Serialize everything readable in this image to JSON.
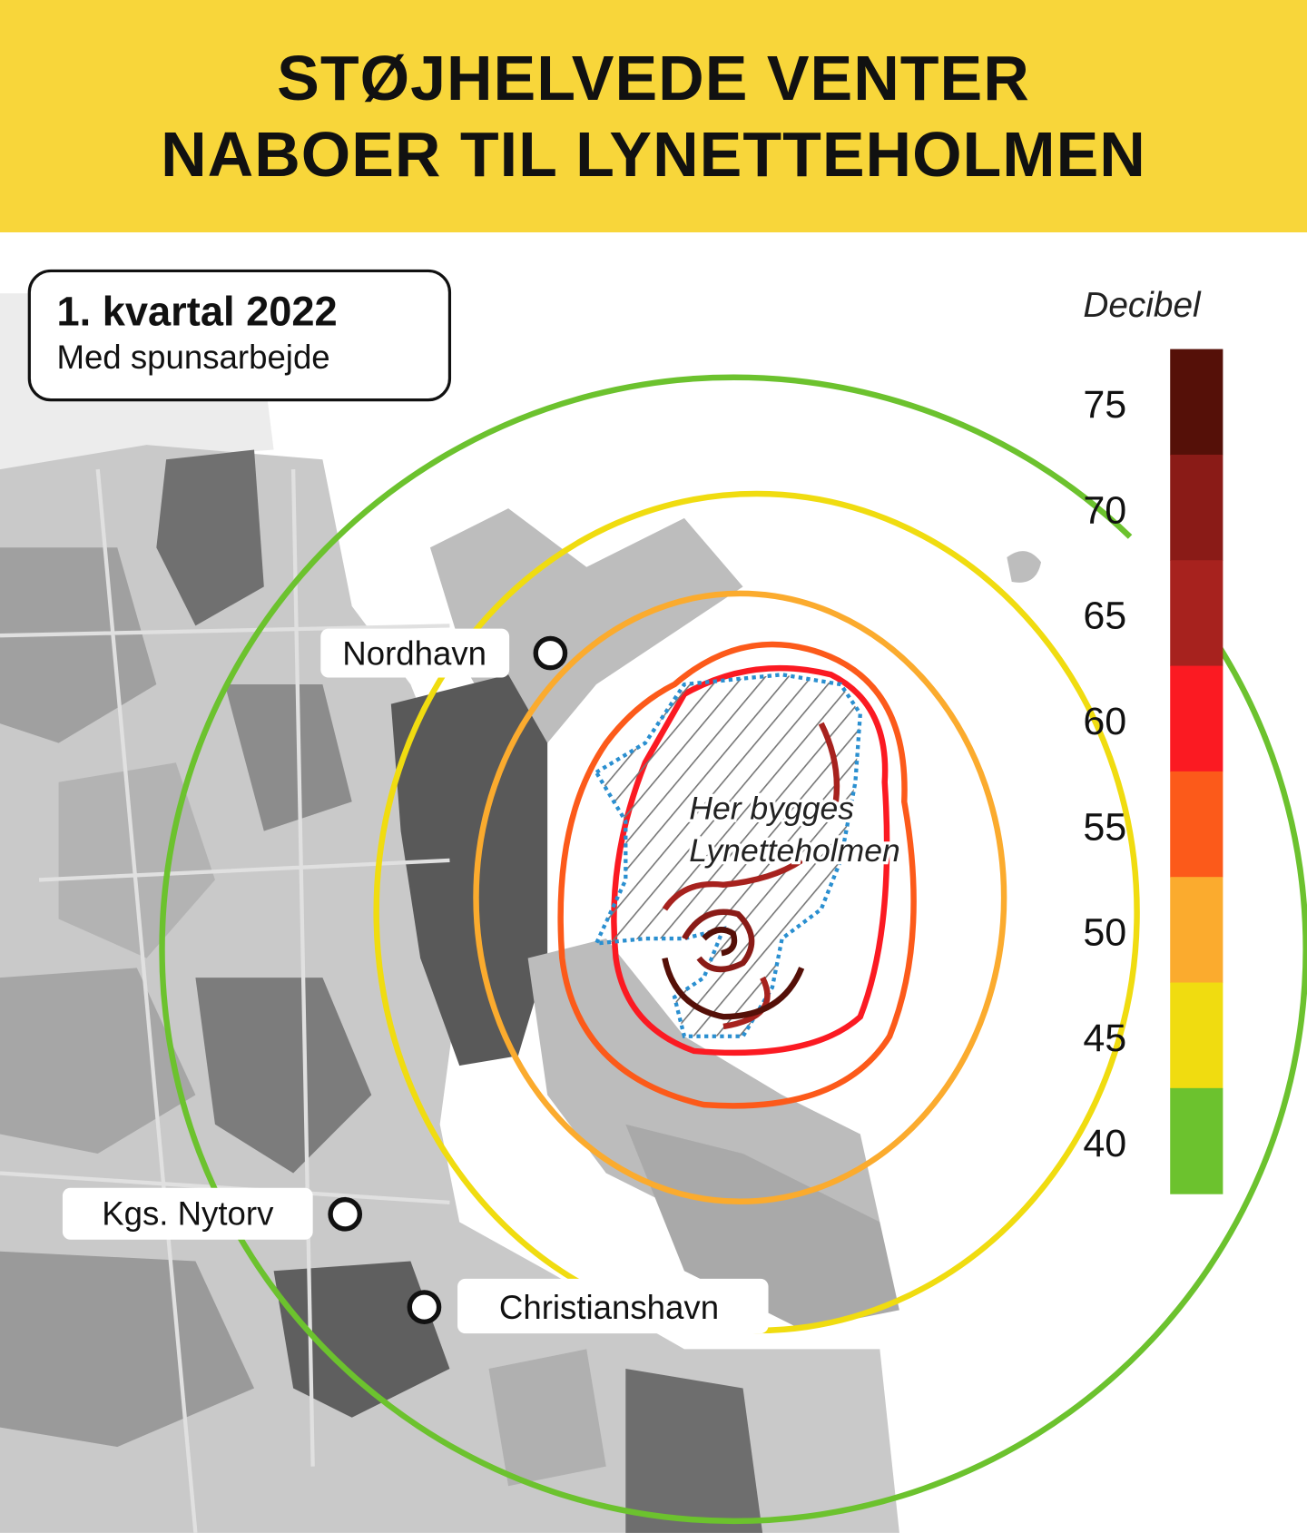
{
  "header": {
    "title_line1": "STØJHELVEDE VENTER",
    "title_line2": "NABOER TIL LYNETTEHOLMEN",
    "background_color": "#f8d63a"
  },
  "info_box": {
    "period": "1. kvartal 2022",
    "subtitle": "Med spunsarbejde"
  },
  "map": {
    "places": [
      {
        "name": "Nordhavn"
      },
      {
        "name": "Kgs. Nytorv"
      },
      {
        "name": "Christianshavn"
      }
    ],
    "construction_area_label_line1": "Her bygges",
    "construction_area_label_line2": "Lynetteholmen",
    "construction_area_border_color": "#2a8fd0"
  },
  "legend": {
    "title": "Decibel",
    "levels": [
      {
        "label": "75",
        "color": "#551008"
      },
      {
        "label": "70",
        "color": "#8a1b17"
      },
      {
        "label": "65",
        "color": "#a7221e"
      },
      {
        "label": "60",
        "color": "#fb1a22"
      },
      {
        "label": "55",
        "color": "#fc5a1a"
      },
      {
        "label": "50",
        "color": "#fbab2e"
      },
      {
        "label": "45",
        "color": "#f0dc10"
      },
      {
        "label": "40",
        "color": "#6cc22e"
      }
    ]
  }
}
